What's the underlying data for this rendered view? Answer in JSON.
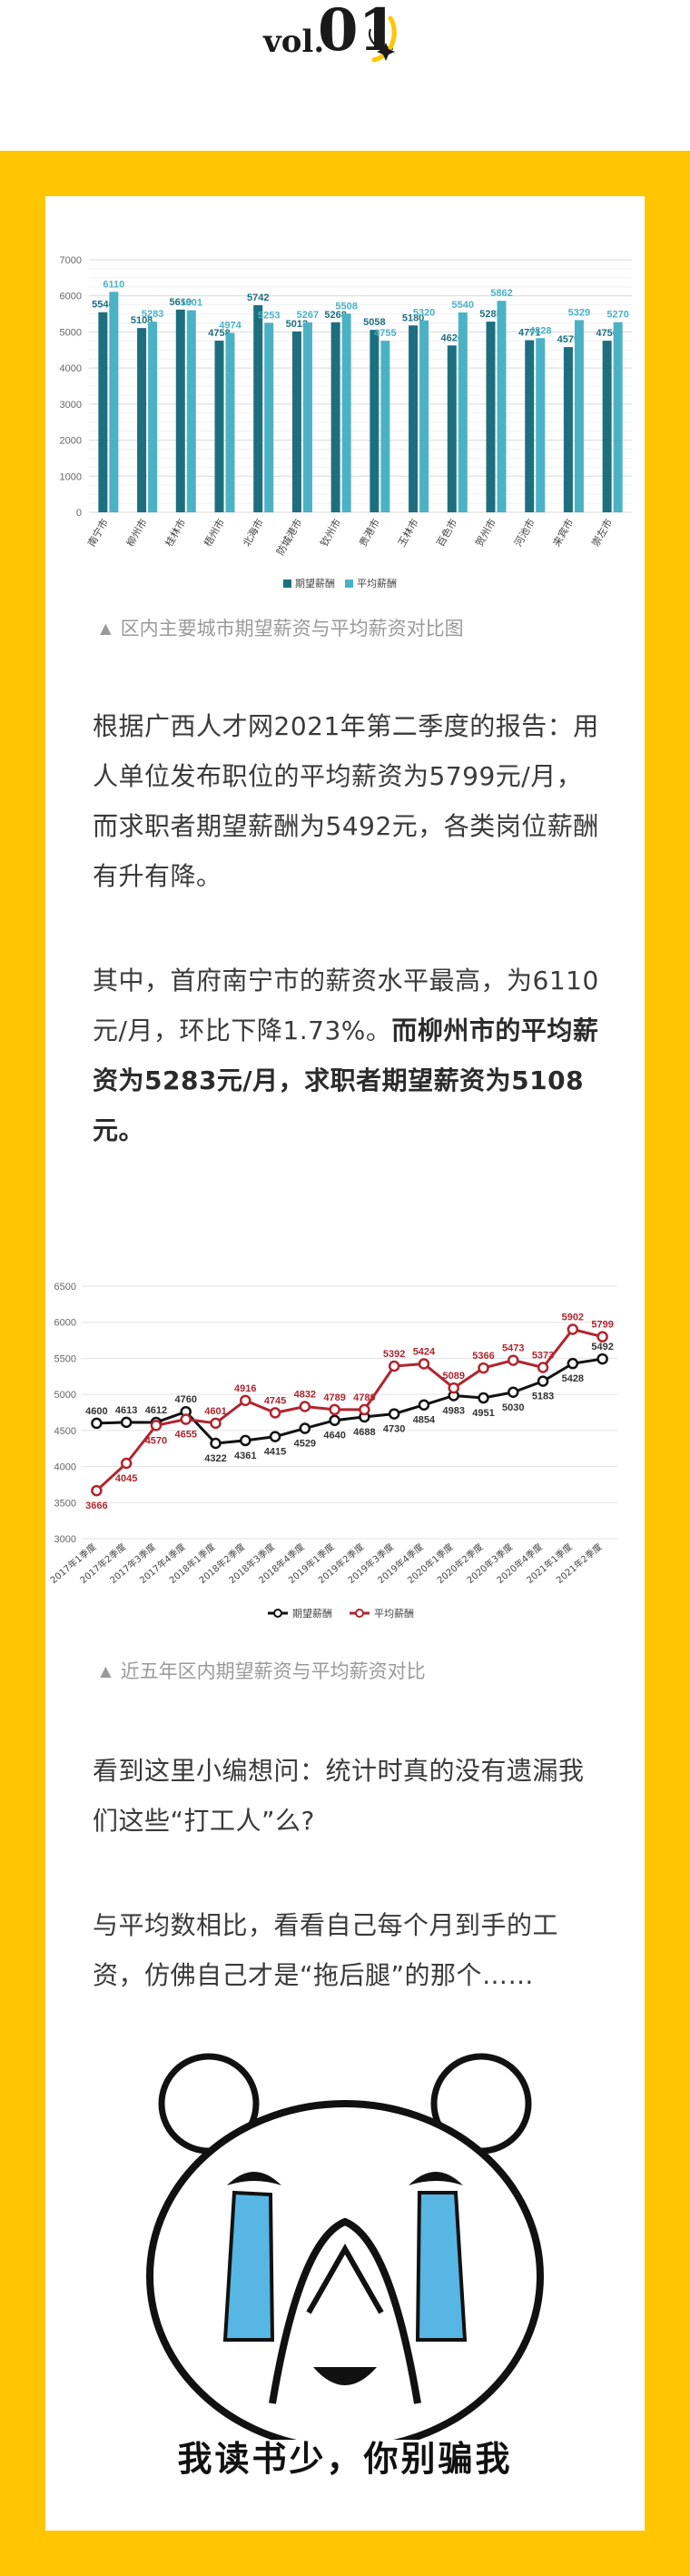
{
  "header": {
    "vol_prefix": "vol.",
    "vol_number": "01"
  },
  "colors": {
    "frame": "#ffc600",
    "bar_expected": "#1d6f80",
    "bar_average": "#4bb2c5",
    "line_expected": "#111111",
    "line_average": "#b0252f"
  },
  "chart_data": [
    {
      "type": "bar",
      "categories": [
        "南宁市",
        "柳州市",
        "桂林市",
        "梧州市",
        "北海市",
        "防城港市",
        "钦州市",
        "贵港市",
        "玉林市",
        "百色市",
        "贺州市",
        "河池市",
        "来宾市",
        "崇左市"
      ],
      "series": [
        {
          "name": "期望薪酬",
          "values": [
            5546,
            5108,
            5619,
            4758,
            5742,
            5013,
            5268,
            5058,
            5180,
            4626,
            5285,
            4771,
            4579,
            4756
          ]
        },
        {
          "name": "平均薪酬",
          "values": [
            6110,
            5283,
            5601,
            4974,
            5253,
            5267,
            5508,
            4755,
            5320,
            5540,
            5862,
            4828,
            5329,
            5270
          ]
        }
      ],
      "yticks": [
        "0",
        "1000",
        "2000",
        "3000",
        "4000",
        "5000",
        "6000",
        "7000"
      ],
      "ylim": [
        0,
        7000
      ],
      "grid": true,
      "legend": "bottom"
    },
    {
      "type": "line",
      "categories": [
        "2017年1季度",
        "2017年2季度",
        "2017年3季度",
        "2017年4季度",
        "2018年1季度",
        "2018年2季度",
        "2018年3季度",
        "2018年4季度",
        "2019年1季度",
        "2019年2季度",
        "2019年3季度",
        "2019年4季度",
        "2020年1季度",
        "2020年2季度",
        "2020年3季度",
        "2020年4季度",
        "2021年1季度",
        "2021年2季度"
      ],
      "series": [
        {
          "name": "期望薪酬",
          "values": [
            4600,
            4613,
            4612,
            4760,
            4322,
            4361,
            4415,
            4529,
            4640,
            4688,
            4730,
            4854,
            4983,
            4951,
            5030,
            5183,
            5428,
            5492
          ]
        },
        {
          "name": "平均薪酬",
          "values": [
            3666,
            4045,
            4570,
            4655,
            4601,
            4916,
            4745,
            4832,
            4789,
            4789,
            5392,
            5424,
            5089,
            5366,
            5473,
            5373,
            5902,
            5799
          ]
        }
      ],
      "yticks": [
        "3000",
        "3500",
        "4000",
        "4500",
        "5000",
        "5500",
        "6000",
        "6500"
      ],
      "ylim": [
        3000,
        6500
      ],
      "grid": true,
      "legend": "bottom"
    }
  ],
  "captions": {
    "chart1": "▲ 区内主要城市期望薪资与平均薪资对比图",
    "chart2": "▲ 近五年区内期望薪资与平均薪资对比"
  },
  "paragraphs": {
    "p1": "根据广西人才网2021年第二季度的报告：用人单位发布职位的平均薪资为5799元/月，而求职者期望薪酬为5492元，各类岗位薪酬有升有降。",
    "p2_normal": "其中，首府南宁市的薪资水平最高，为6110元/月，环比下降1.73%。",
    "p2_bold": "而柳州市的平均薪资为5283元/月，求职者期望薪资为5108元。",
    "p3": "看到这里小编想问：统计时真的没有遗漏我们这些“打工人”么?",
    "p4": "与平均数相比，看看自己每个月到手的工资，仿佛自己才是“拖后腿”的那个……"
  },
  "meme": {
    "caption": "我读书少，你别骗我"
  }
}
